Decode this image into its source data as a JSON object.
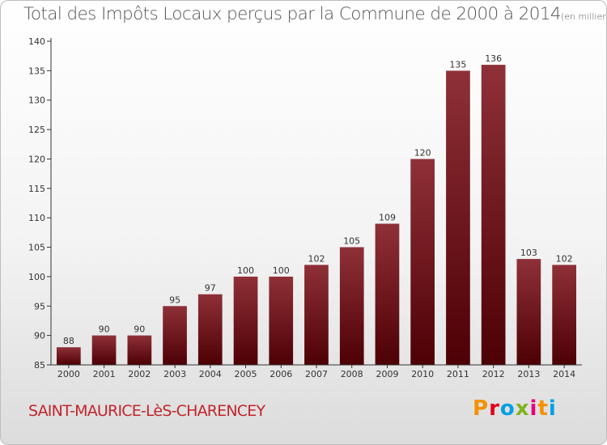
{
  "title": "Total des Impôts Locaux perçus par la Commune de 2000 à 2014",
  "title_unit": "(en milliers d'€)",
  "commune": "SAINT-MAURICE-LèS-CHARENCEY",
  "logo": {
    "text": "Proxiti",
    "colors": [
      "#f39200",
      "#e2001a",
      "#00a0e2",
      "#7fb41c",
      "#e6007e",
      "#f39200",
      "#00a0e2"
    ]
  },
  "colors": {
    "bar_top": "#8f3038",
    "bar_bottom": "#4d0005",
    "axis": "#333333",
    "commune": "#c0262d"
  },
  "chart_data": {
    "type": "bar",
    "categories": [
      "2000",
      "2001",
      "2002",
      "2003",
      "2004",
      "2005",
      "2006",
      "2007",
      "2008",
      "2009",
      "2010",
      "2011",
      "2012",
      "2013",
      "2014"
    ],
    "values": [
      88,
      90,
      90,
      95,
      97,
      100,
      100,
      102,
      105,
      109,
      120,
      135,
      136,
      103,
      102
    ],
    "ylim": [
      85,
      140
    ],
    "yticks": [
      85,
      90,
      95,
      100,
      105,
      110,
      115,
      120,
      125,
      130,
      135,
      140
    ],
    "grid": false,
    "legend": "none"
  }
}
